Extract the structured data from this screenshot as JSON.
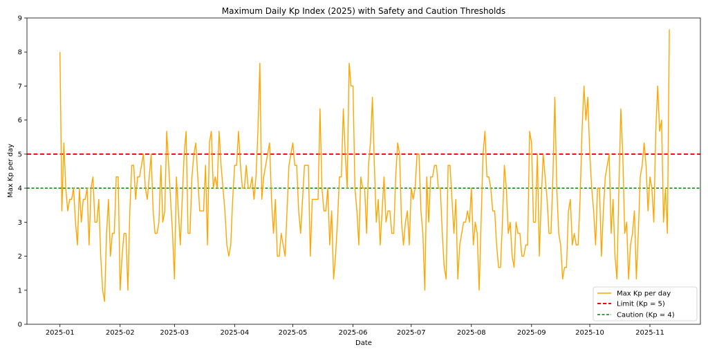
{
  "chart_data": {
    "type": "line",
    "title": "Maximum Daily Kp Index (2025) with Safety and Caution Thresholds",
    "xlabel": "Date",
    "ylabel": "Max Kp per day",
    "ylim": [
      0,
      9
    ],
    "yticks": [
      0,
      1,
      2,
      3,
      4,
      5,
      6,
      7,
      8,
      9
    ],
    "xlim": [
      "2024-12-15",
      "2025-11-27"
    ],
    "xticks": [
      "2025-01",
      "2025-02",
      "2025-03",
      "2025-04",
      "2025-05",
      "2025-06",
      "2025-07",
      "2025-08",
      "2025-09",
      "2025-10",
      "2025-11"
    ],
    "grid": false,
    "legend_position": "lower-right",
    "series": [
      {
        "name": "Max Kp per day",
        "color": "#FFA500",
        "style": "solid",
        "start_date": "2025-01-01",
        "values": [
          8.0,
          3.33,
          5.33,
          4.0,
          3.33,
          3.67,
          3.67,
          4.0,
          3.0,
          2.33,
          4.0,
          3.0,
          3.67,
          3.67,
          4.0,
          2.33,
          4.0,
          4.33,
          3.0,
          3.0,
          3.67,
          2.0,
          1.0,
          0.67,
          2.67,
          3.67,
          2.0,
          2.67,
          2.67,
          4.33,
          4.33,
          1.0,
          2.0,
          2.67,
          2.67,
          1.0,
          3.33,
          4.67,
          4.67,
          3.67,
          4.33,
          4.33,
          4.67,
          5.0,
          4.0,
          3.67,
          4.33,
          5.0,
          3.33,
          2.67,
          2.67,
          3.0,
          4.67,
          3.0,
          3.33,
          5.67,
          4.67,
          3.67,
          2.67,
          1.33,
          4.33,
          3.33,
          2.33,
          3.67,
          5.0,
          5.67,
          2.67,
          2.67,
          4.33,
          5.0,
          5.33,
          4.33,
          3.33,
          3.33,
          3.33,
          4.67,
          2.33,
          5.33,
          5.67,
          4.0,
          4.33,
          4.0,
          5.67,
          4.67,
          4.0,
          3.33,
          2.33,
          2.0,
          2.33,
          3.67,
          4.67,
          4.67,
          5.67,
          4.67,
          4.0,
          4.0,
          4.67,
          4.0,
          4.0,
          4.33,
          3.67,
          4.33,
          5.67,
          7.67,
          3.67,
          4.33,
          4.67,
          5.0,
          5.33,
          3.67,
          2.67,
          3.67,
          2.0,
          2.0,
          2.67,
          2.33,
          2.0,
          3.33,
          4.67,
          5.0,
          5.33,
          4.67,
          4.67,
          3.33,
          2.67,
          3.67,
          4.67,
          4.67,
          4.67,
          2.0,
          3.67,
          3.67,
          3.67,
          3.67,
          6.33,
          4.0,
          3.33,
          3.33,
          4.0,
          2.33,
          3.33,
          1.33,
          2.0,
          3.0,
          4.33,
          4.33,
          6.33,
          5.0,
          4.0,
          7.67,
          7.0,
          7.0,
          4.0,
          3.33,
          2.33,
          4.33,
          4.0,
          4.0,
          2.67,
          4.67,
          5.33,
          6.67,
          4.67,
          3.0,
          3.67,
          2.33,
          3.33,
          4.33,
          3.0,
          3.33,
          3.33,
          2.67,
          2.67,
          4.33,
          5.33,
          5.0,
          3.0,
          2.33,
          3.0,
          3.33,
          2.33,
          4.0,
          3.67,
          4.0,
          5.0,
          5.0,
          3.33,
          2.67,
          1.0,
          4.33,
          3.0,
          4.33,
          4.33,
          4.67,
          4.67,
          4.0,
          4.0,
          2.67,
          1.67,
          1.33,
          4.67,
          4.67,
          3.67,
          2.67,
          3.67,
          1.33,
          2.33,
          2.67,
          3.0,
          3.0,
          3.33,
          3.0,
          4.0,
          2.33,
          3.0,
          2.67,
          1.0,
          3.0,
          5.0,
          5.67,
          4.33,
          4.33,
          4.0,
          3.33,
          3.33,
          2.33,
          1.67,
          1.67,
          3.0,
          4.67,
          4.0,
          2.67,
          3.0,
          2.0,
          1.67,
          3.0,
          2.67,
          2.67,
          2.0,
          2.0,
          2.33,
          2.33,
          5.67,
          5.33,
          3.0,
          3.0,
          5.0,
          2.0,
          3.67,
          5.0,
          4.33,
          3.67,
          2.67,
          2.67,
          4.33,
          6.67,
          4.0,
          2.67,
          2.33,
          1.33,
          1.67,
          1.67,
          3.33,
          3.67,
          2.33,
          2.67,
          2.33,
          2.33,
          3.67,
          5.67,
          7.0,
          6.0,
          6.67,
          5.0,
          4.0,
          3.33,
          2.33,
          4.0,
          4.0,
          2.0,
          3.33,
          4.33,
          4.67,
          5.0,
          2.67,
          3.67,
          2.0,
          1.33,
          4.0,
          6.33,
          5.0,
          2.67,
          3.0,
          1.33,
          2.33,
          2.67,
          3.33,
          1.33,
          2.67,
          4.33,
          4.67,
          5.33,
          4.67,
          3.33,
          4.33,
          4.0,
          3.0,
          5.67,
          7.0,
          5.67,
          6.0,
          3.0,
          4.0,
          2.67,
          8.67
        ]
      },
      {
        "name": "Limit (Kp = 5)",
        "color": "#FF0000",
        "style": "dashed",
        "y": 5
      },
      {
        "name": "Caution (Kp = 4)",
        "color": "#008000",
        "style": "dashed",
        "y": 4
      }
    ]
  }
}
